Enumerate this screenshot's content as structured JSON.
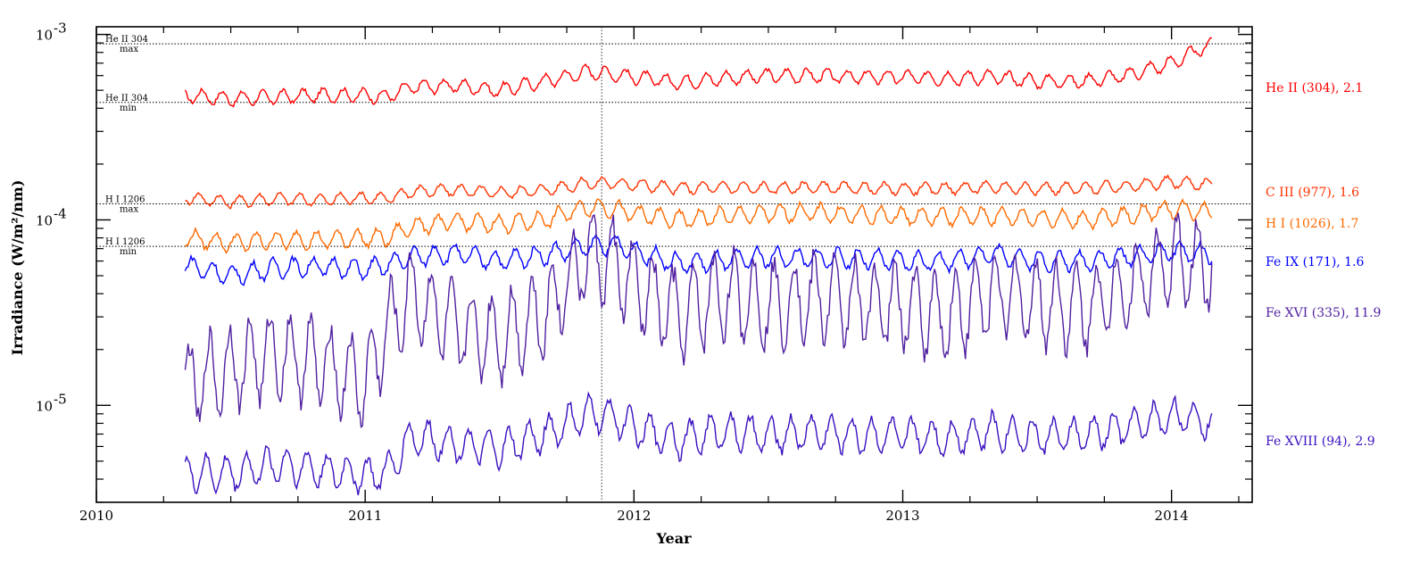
{
  "chart_data": {
    "type": "line",
    "title": "",
    "xlabel": "Year",
    "ylabel": "Irradiance (W/m²/nm)",
    "yscale": "log",
    "xlim": [
      2010.0,
      2014.3
    ],
    "ylim": [
      3e-06,
      0.0011
    ],
    "x_ticks": [
      2010,
      2011,
      2012,
      2013,
      2014
    ],
    "x_tick_labels": [
      "2010",
      "2011",
      "2012",
      "2013",
      "2014"
    ],
    "y_ticks": [
      1e-05,
      0.0001,
      0.001
    ],
    "y_tick_labels": [
      {
        "base": "10",
        "exp": "-5"
      },
      {
        "base": "10",
        "exp": "-4"
      },
      {
        "base": "10",
        "exp": "-3"
      }
    ],
    "vertical_marker_x": 2011.88,
    "reference_lines": [
      {
        "value": 0.00089,
        "label_top": "He II 304",
        "label_bottom": "max"
      },
      {
        "value": 0.00043,
        "label_top": "He II 304",
        "label_bottom": "min"
      },
      {
        "value": 0.000122,
        "label_top": "H I 1206",
        "label_bottom": "max"
      },
      {
        "value": 7.2e-05,
        "label_top": "H I 1206",
        "label_bottom": "min"
      }
    ],
    "x": [
      2010.33,
      2010.5,
      2010.67,
      2010.83,
      2011.0,
      2011.08,
      2011.17,
      2011.33,
      2011.5,
      2011.67,
      2011.83,
      2011.92,
      2012.0,
      2012.17,
      2012.33,
      2012.5,
      2012.67,
      2012.83,
      2013.0,
      2013.17,
      2013.33,
      2013.5,
      2013.67,
      2013.83,
      2014.0,
      2014.15
    ],
    "series": [
      {
        "name": "He II (304), 2.1",
        "color": "#ff0000",
        "values": [
          0.00047,
          0.00045,
          0.00046,
          0.00047,
          0.00047,
          0.00046,
          0.00052,
          0.00053,
          0.0005,
          0.00056,
          0.00063,
          0.00061,
          0.00059,
          0.00055,
          0.00058,
          0.0006,
          0.0006,
          0.00059,
          0.00059,
          0.00058,
          0.00059,
          0.00056,
          0.00056,
          0.0006,
          0.0007,
          0.00089
        ]
      },
      {
        "name": "C III (977), 1.6",
        "color": "#ff3300",
        "values": [
          0.000132,
          0.000125,
          0.00013,
          0.000128,
          0.000132,
          0.00013,
          0.000142,
          0.000145,
          0.00014,
          0.000145,
          0.000158,
          0.000158,
          0.000155,
          0.000148,
          0.00015,
          0.000148,
          0.00015,
          0.000148,
          0.000147,
          0.000148,
          0.00015,
          0.000148,
          0.000148,
          0.000152,
          0.00016,
          0.000155
        ]
      },
      {
        "name": "H I (1026), 1.7",
        "color": "#ff6a00",
        "values": [
          8e-05,
          7.5e-05,
          7.8e-05,
          7.8e-05,
          8e-05,
          8e-05,
          9.2e-05,
          9.8e-05,
          9.5e-05,
          0.0001,
          0.000118,
          0.000115,
          0.000108,
          0.0001,
          0.000105,
          0.000108,
          0.00011,
          0.000106,
          0.000105,
          0.000104,
          0.000105,
          0.000103,
          0.0001,
          0.000105,
          0.000115,
          0.00011
        ]
      },
      {
        "name": "Fe IX (171), 1.6",
        "color": "#0000ff",
        "values": [
          5.7e-05,
          5e-05,
          5.5e-05,
          5.6e-05,
          5.4e-05,
          5.7e-05,
          6.3e-05,
          6.6e-05,
          6e-05,
          6.5e-05,
          7.2e-05,
          7.4e-05,
          6.8e-05,
          5.8e-05,
          6e-05,
          6.3e-05,
          6.2e-05,
          6.2e-05,
          6e-05,
          6e-05,
          6.6e-05,
          6e-05,
          6e-05,
          6.3e-05,
          6.8e-05,
          6.5e-05
        ]
      },
      {
        "name": "Fe XVI (335), 11.9",
        "color": "#5020a0",
        "values": [
          1.25e-05,
          1.6e-05,
          1.9e-05,
          1.7e-05,
          1.3e-05,
          2.5e-05,
          4e-05,
          2.6e-05,
          2.3e-05,
          3.2e-05,
          6.5e-05,
          5.8e-05,
          4.4e-05,
          3e-05,
          4e-05,
          3.5e-05,
          3.8e-05,
          3.6e-05,
          3.4e-05,
          3e-05,
          4e-05,
          3.6e-05,
          3.3e-05,
          4.3e-05,
          6e-05,
          5.6e-05
        ]
      },
      {
        "name": "Fe XVIII (94), 2.9",
        "color": "#3a10c0",
        "values": [
          4.3e-06,
          4.3e-06,
          4.8e-06,
          4.5e-06,
          4.2e-06,
          4.3e-06,
          6.8e-06,
          6.2e-06,
          5.8e-06,
          7e-06,
          9e-06,
          8.8e-06,
          7.5e-06,
          6.5e-06,
          7.3e-06,
          6.8e-06,
          7.2e-06,
          6.9e-06,
          6.9e-06,
          6.7e-06,
          7.3e-06,
          6.8e-06,
          6.9e-06,
          7.6e-06,
          8.8e-06,
          8.2e-06
        ]
      }
    ]
  }
}
